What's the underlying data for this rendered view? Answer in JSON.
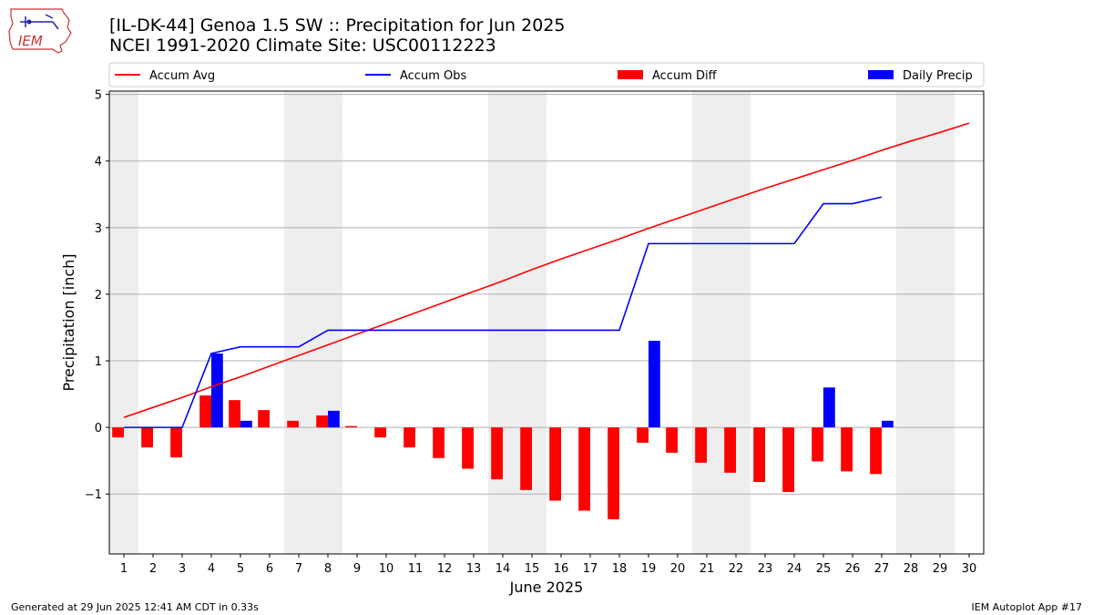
{
  "header": {
    "title_line1": "[IL-DK-44] Genoa 1.5 SW :: Precipitation for Jun 2025",
    "title_line2": "NCEI 1991-2020 Climate Site: USC00112223",
    "logo_text": "IEM"
  },
  "footer": {
    "generated": "Generated at 29 Jun 2025 12:41 AM CDT in 0.33s",
    "app": "IEM Autoplot App #17"
  },
  "chart_data": {
    "type": "bar",
    "title": "[IL-DK-44] Genoa 1.5 SW :: Precipitation for Jun 2025",
    "subtitle": "NCEI 1991-2020 Climate Site: USC00112223",
    "xlabel": "June 2025",
    "ylabel": "Precipitation [inch]",
    "ylim": [
      -1.9,
      5.05
    ],
    "xlim": [
      0.5,
      30.5
    ],
    "yticks": [
      -1,
      0,
      1,
      2,
      3,
      4,
      5
    ],
    "ytick_labels": [
      "−1",
      "0",
      "1",
      "2",
      "3",
      "4",
      "5"
    ],
    "categories": [
      "1",
      "2",
      "3",
      "4",
      "5",
      "6",
      "7",
      "8",
      "9",
      "10",
      "11",
      "12",
      "13",
      "14",
      "15",
      "16",
      "17",
      "18",
      "19",
      "20",
      "21",
      "22",
      "23",
      "24",
      "25",
      "26",
      "27",
      "28",
      "29",
      "30"
    ],
    "grid": "horizontal",
    "legend_position": "top",
    "weekend_shading": [
      [
        0.5,
        1.5
      ],
      [
        6.5,
        8.5
      ],
      [
        13.5,
        15.5
      ],
      [
        20.5,
        22.5
      ],
      [
        27.5,
        29.5
      ]
    ],
    "shade_color": "#eeeeee",
    "series": [
      {
        "name": "Accum Avg",
        "kind": "line",
        "color": "#ff0000",
        "values": [
          0.15,
          0.3,
          0.45,
          0.61,
          0.76,
          0.92,
          1.08,
          1.24,
          1.4,
          1.56,
          1.72,
          1.88,
          2.04,
          2.2,
          2.37,
          2.53,
          2.68,
          2.83,
          2.99,
          3.14,
          3.29,
          3.44,
          3.59,
          3.73,
          3.87,
          4.01,
          4.16,
          4.3,
          4.43,
          4.57
        ]
      },
      {
        "name": "Accum Obs",
        "kind": "line",
        "color": "#0000ff",
        "values": [
          0.0,
          0.0,
          0.0,
          1.11,
          1.21,
          1.21,
          1.21,
          1.46,
          1.46,
          1.46,
          1.46,
          1.46,
          1.46,
          1.46,
          1.46,
          1.46,
          1.46,
          1.46,
          2.76,
          2.76,
          2.76,
          2.76,
          2.76,
          2.76,
          3.36,
          3.36,
          3.46,
          null,
          null,
          null
        ]
      },
      {
        "name": "Accum Diff",
        "kind": "bar",
        "color": "#ff0000",
        "values": [
          -0.15,
          -0.3,
          -0.45,
          0.48,
          0.41,
          0.26,
          0.1,
          0.18,
          0.02,
          -0.15,
          -0.3,
          -0.46,
          -0.62,
          -0.78,
          -0.94,
          -1.1,
          -1.25,
          -1.38,
          -0.23,
          -0.38,
          -0.53,
          -0.68,
          -0.82,
          -0.97,
          -0.51,
          -0.66,
          -0.7,
          null,
          null,
          null
        ]
      },
      {
        "name": "Daily Precip",
        "kind": "bar",
        "color": "#0000ff",
        "values": [
          0,
          0,
          0,
          1.11,
          0.1,
          0,
          0,
          0.25,
          0,
          0,
          0,
          0,
          0,
          0,
          0,
          0,
          0,
          0,
          1.3,
          0,
          0,
          0,
          0,
          0,
          0.6,
          0,
          0.1,
          null,
          null,
          null
        ]
      }
    ]
  }
}
